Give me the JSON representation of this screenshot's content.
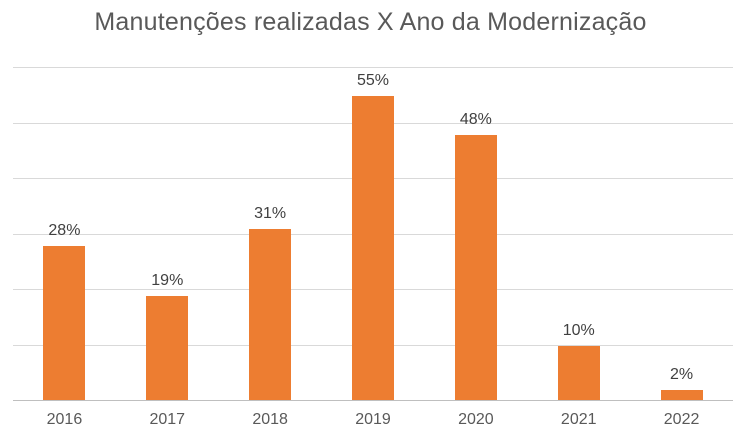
{
  "title": "Manutenções realizadas X Ano da Modernização",
  "colors": {
    "bar": "#ED7D31",
    "gridline": "#D9D9D9",
    "axis_line": "#BFBFBF",
    "title_text": "#595959",
    "axis_label_text": "#595959",
    "data_label_text": "#404040",
    "background": "#FFFFFF"
  },
  "chart_data": {
    "type": "bar",
    "title": "Manutenções realizadas X Ano da Modernização",
    "categories": [
      "2016",
      "2017",
      "2018",
      "2019",
      "2020",
      "2021",
      "2022"
    ],
    "values": [
      28,
      19,
      31,
      55,
      48,
      10,
      2
    ],
    "data_labels": [
      "28%",
      "19%",
      "31%",
      "55%",
      "48%",
      "10%",
      "2%"
    ],
    "xlabel": "",
    "ylabel": "",
    "ylim": [
      0,
      60
    ],
    "gridline_interval": 10,
    "grid": true,
    "legend": false,
    "y_axis_labels_visible": false,
    "x_axis_labels_visible": true,
    "data_labels_position": "above-bar"
  }
}
